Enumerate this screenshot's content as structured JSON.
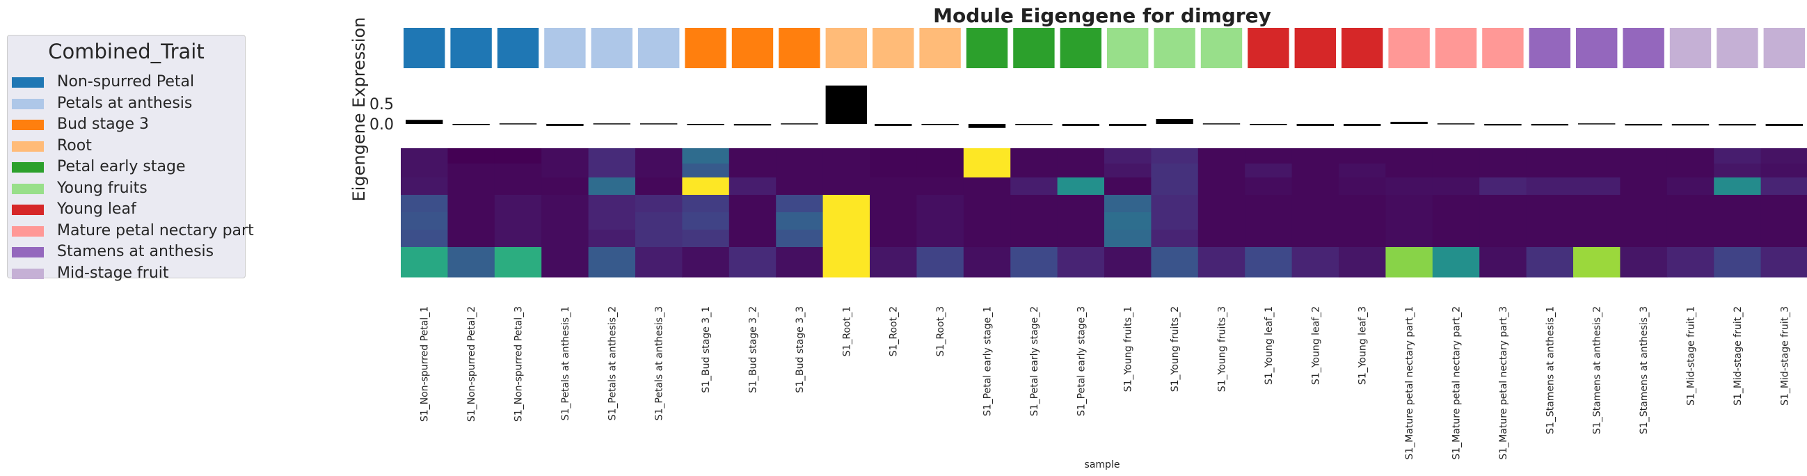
{
  "legend": {
    "title": "Combined_Trait",
    "items": [
      {
        "label": "Non-spurred Petal",
        "color": "#1f77b4"
      },
      {
        "label": "Petals at anthesis",
        "color": "#aec7e8"
      },
      {
        "label": "Bud stage 3",
        "color": "#ff7f0e"
      },
      {
        "label": "Root",
        "color": "#ffbb78"
      },
      {
        "label": "Petal early stage",
        "color": "#2ca02c"
      },
      {
        "label": "Young fruits",
        "color": "#98df8a"
      },
      {
        "label": "Young leaf",
        "color": "#d62728"
      },
      {
        "label": "Mature petal nectary part",
        "color": "#ff9896"
      },
      {
        "label": "Stamens at anthesis",
        "color": "#9467bd"
      },
      {
        "label": "Mid-stage fruit",
        "color": "#c5b0d5"
      }
    ]
  },
  "chart_data": {
    "type": "bar",
    "title": "Module Eigengene for dimgrey",
    "ylabel": "Eigengene Expression",
    "xlabel": "sample",
    "yticks": [
      "0.5",
      "0.0"
    ],
    "ytick_values": [
      0.5,
      0.0
    ],
    "ylim": [
      -0.1,
      0.95
    ],
    "bar_color": "#000000",
    "categories": [
      "S1_Non-spurred Petal_1",
      "S1_Non-spurred Petal_2",
      "S1_Non-spurred Petal_3",
      "S1_Petals at anthesis_1",
      "S1_Petals at anthesis_2",
      "S1_Petals at anthesis_3",
      "S1_Bud stage 3_1",
      "S1_Bud stage 3_2",
      "S1_Bud stage 3_3",
      "S1_Root_1",
      "S1_Root_2",
      "S1_Root_3",
      "S1_Petal early stage_1",
      "S1_Petal early stage_2",
      "S1_Petal early stage_3",
      "S1_Young fruits_1",
      "S1_Young fruits_2",
      "S1_Young fruits_3",
      "S1_Young leaf_1",
      "S1_Young leaf_2",
      "S1_Young leaf_3",
      "S1_Mature petal nectary part_1",
      "S1_Mature petal nectary part_2",
      "S1_Mature petal nectary part_3",
      "S1_Stamens at anthesis_1",
      "S1_Stamens at anthesis_2",
      "S1_Stamens at anthesis_3",
      "S1_Mid-stage fruit_1",
      "S1_Mid-stage fruit_2",
      "S1_Mid-stage fruit_3"
    ],
    "trait_groups": [
      0,
      0,
      0,
      1,
      1,
      1,
      2,
      2,
      2,
      3,
      3,
      3,
      4,
      4,
      4,
      5,
      5,
      5,
      6,
      6,
      6,
      7,
      7,
      7,
      8,
      8,
      8,
      9,
      9,
      9
    ],
    "values": [
      0.1,
      -0.03,
      -0.01,
      -0.05,
      -0.02,
      -0.02,
      -0.03,
      -0.04,
      0.02,
      0.95,
      -0.05,
      -0.03,
      -0.1,
      -0.03,
      -0.05,
      -0.05,
      0.12,
      -0.02,
      -0.03,
      -0.05,
      -0.05,
      0.05,
      0.0,
      -0.04,
      -0.04,
      0.02,
      -0.04,
      -0.04,
      -0.04,
      -0.05
    ],
    "heatmap": {
      "colormap": "viridis",
      "rows": [
        [
          0.05,
          0.0,
          0.0,
          0.03,
          0.12,
          0.03,
          0.35,
          0.02,
          0.02,
          0.02,
          0.01,
          0.01,
          1.0,
          0.02,
          0.02,
          0.08,
          0.12,
          0.02,
          0.02,
          0.02,
          0.02,
          0.02,
          0.02,
          0.02,
          0.02,
          0.02,
          0.02,
          0.02,
          0.08,
          0.05
        ],
        [
          0.05,
          0.02,
          0.02,
          0.03,
          0.12,
          0.03,
          0.28,
          0.02,
          0.02,
          0.02,
          0.01,
          0.01,
          1.0,
          0.02,
          0.02,
          0.06,
          0.14,
          0.02,
          0.06,
          0.02,
          0.04,
          0.02,
          0.02,
          0.02,
          0.02,
          0.02,
          0.02,
          0.02,
          0.06,
          0.04
        ],
        [
          0.06,
          0.02,
          0.02,
          0.02,
          0.35,
          0.02,
          1.0,
          0.08,
          0.02,
          0.02,
          0.02,
          0.02,
          0.02,
          0.08,
          0.5,
          0.02,
          0.14,
          0.02,
          0.03,
          0.02,
          0.03,
          0.04,
          0.04,
          0.1,
          0.08,
          0.08,
          0.02,
          0.04,
          0.48,
          0.1
        ],
        [
          0.24,
          0.02,
          0.05,
          0.03,
          0.1,
          0.12,
          0.18,
          0.02,
          0.22,
          1.0,
          0.02,
          0.04,
          0.02,
          0.02,
          0.02,
          0.32,
          0.12,
          0.02,
          0.02,
          0.02,
          0.02,
          0.03,
          0.02,
          0.02,
          0.02,
          0.02,
          0.02,
          0.02,
          0.02,
          0.02
        ],
        [
          0.26,
          0.02,
          0.05,
          0.03,
          0.1,
          0.14,
          0.2,
          0.02,
          0.3,
          1.0,
          0.02,
          0.04,
          0.02,
          0.02,
          0.02,
          0.36,
          0.12,
          0.02,
          0.02,
          0.02,
          0.02,
          0.03,
          0.02,
          0.02,
          0.02,
          0.02,
          0.02,
          0.02,
          0.02,
          0.02
        ],
        [
          0.24,
          0.02,
          0.05,
          0.03,
          0.08,
          0.14,
          0.16,
          0.02,
          0.26,
          1.0,
          0.02,
          0.04,
          0.02,
          0.02,
          0.02,
          0.34,
          0.1,
          0.02,
          0.02,
          0.02,
          0.02,
          0.03,
          0.02,
          0.02,
          0.02,
          0.02,
          0.02,
          0.02,
          0.02,
          0.02
        ],
        [
          0.6,
          0.3,
          0.62,
          0.03,
          0.28,
          0.08,
          0.04,
          0.12,
          0.04,
          1.0,
          0.06,
          0.2,
          0.04,
          0.22,
          0.1,
          0.04,
          0.26,
          0.1,
          0.22,
          0.1,
          0.06,
          0.82,
          0.5,
          0.04,
          0.14,
          0.85,
          0.06,
          0.1,
          0.2,
          0.1
        ]
      ]
    }
  }
}
